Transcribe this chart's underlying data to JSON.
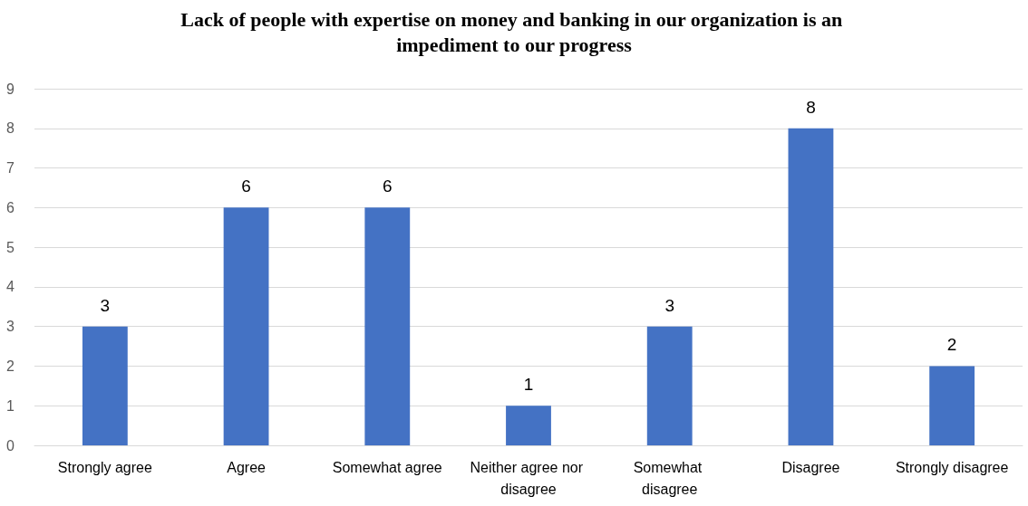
{
  "chart_data": {
    "type": "bar",
    "title": "Lack of people with expertise on money and banking in our organization is an impediment to our progress",
    "categories": [
      "Strongly agree",
      "Agree",
      "Somewhat agree",
      "Neither agree nor disagree",
      "Somewhat disagree",
      "Disagree",
      "Strongly disagree"
    ],
    "values": [
      3,
      6,
      6,
      1,
      3,
      8,
      2
    ],
    "color": "#4472c4",
    "ylim": [
      0,
      9
    ],
    "yticks": [
      0,
      1,
      2,
      3,
      4,
      5,
      6,
      7,
      8,
      9
    ],
    "grid": "y",
    "data_labels": true
  }
}
